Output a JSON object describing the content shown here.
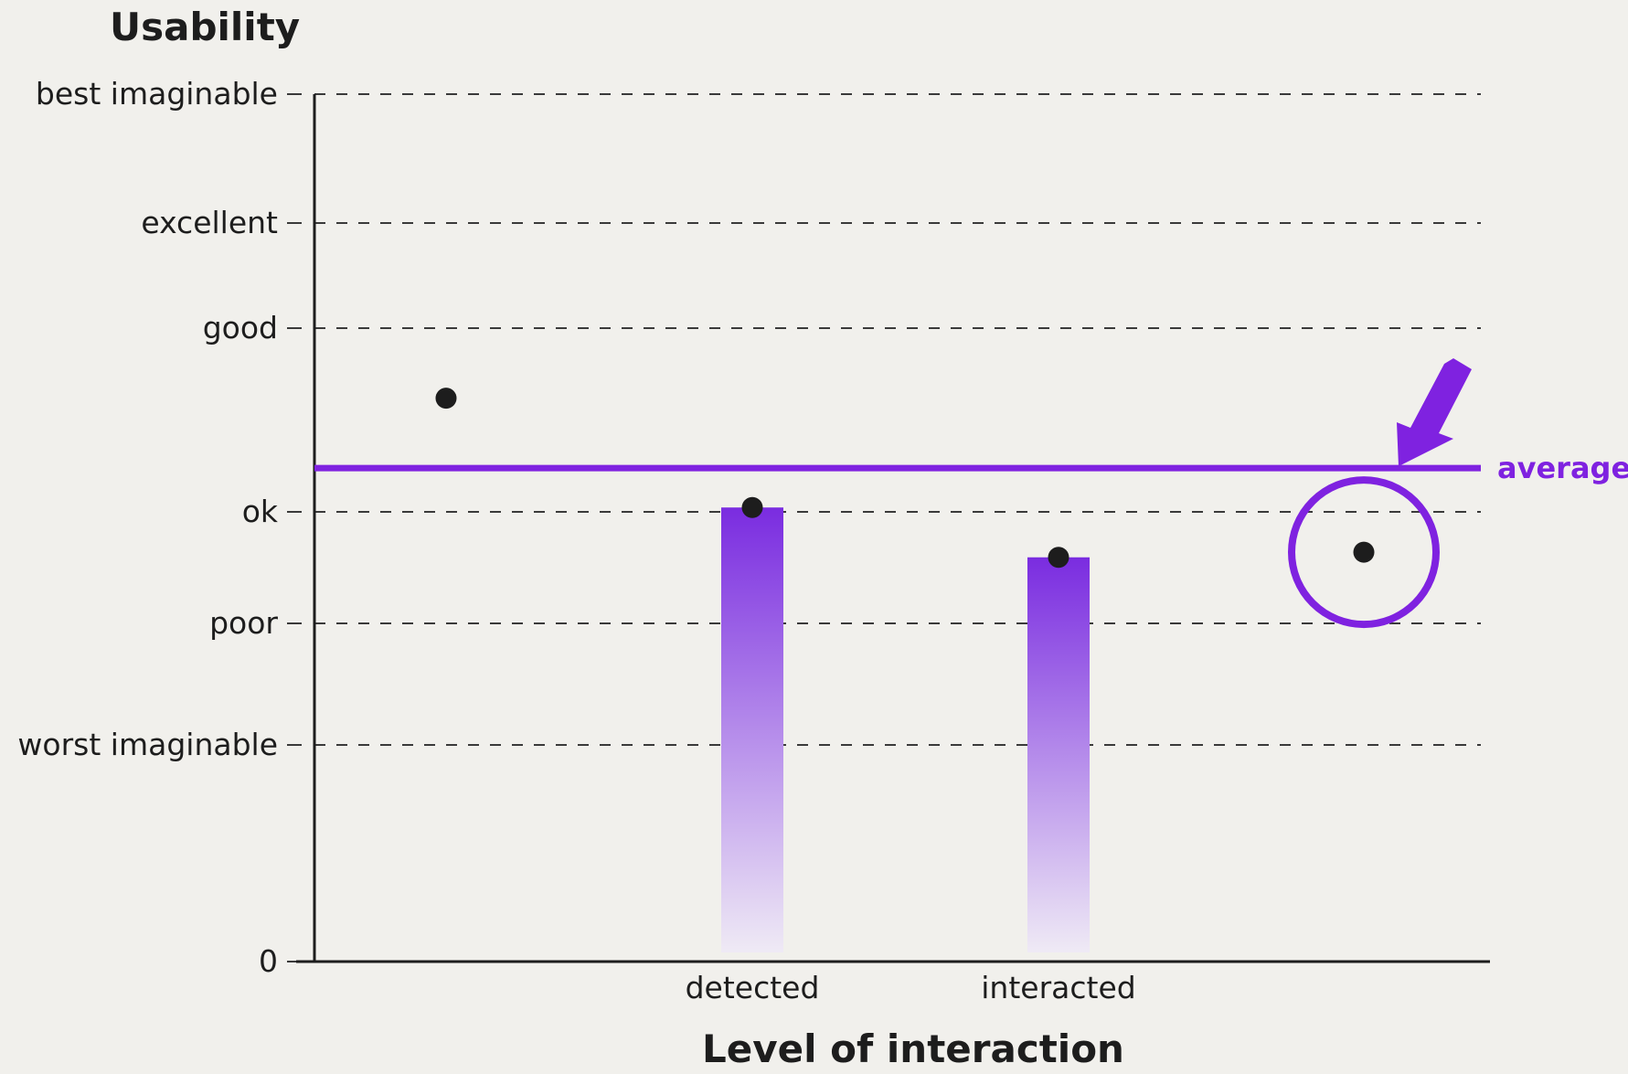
{
  "chart_data": {
    "type": "bar",
    "ylabel": "Usability",
    "xlabel": "Level of interaction",
    "y_ticks": [
      {
        "label": "0",
        "value": 0
      },
      {
        "label": "worst imaginable",
        "value": 25
      },
      {
        "label": "poor",
        "value": 39
      },
      {
        "label": "ok",
        "value": 52
      },
      {
        "label": "good",
        "value": 73
      },
      {
        "label": "excellent",
        "value": 85
      },
      {
        "label": "best imaginable",
        "value": 100
      }
    ],
    "ylim": [
      0,
      100
    ],
    "grid": "dashed-horizontal",
    "categories": [
      "",
      "detected",
      "interacted",
      ""
    ],
    "bars": [
      {
        "category": "detected",
        "value": 52.5
      },
      {
        "category": "interacted",
        "value": 46.7
      }
    ],
    "points": [
      {
        "category_index": 0,
        "value": 65
      },
      {
        "category_index": 1,
        "value": 52.5
      },
      {
        "category_index": 2,
        "value": 46.7
      },
      {
        "category_index": 3,
        "value": 47.3
      }
    ],
    "average": {
      "label": "average",
      "value": 57
    },
    "highlight": {
      "category_index": 3,
      "value": 47.3
    },
    "colors": {
      "accent": "#7f22e0",
      "bar_top": "#7a2ce0",
      "bar_bottom": "#efeaf5",
      "ink": "#1d1d1d",
      "background": "#f1f0ec"
    }
  }
}
